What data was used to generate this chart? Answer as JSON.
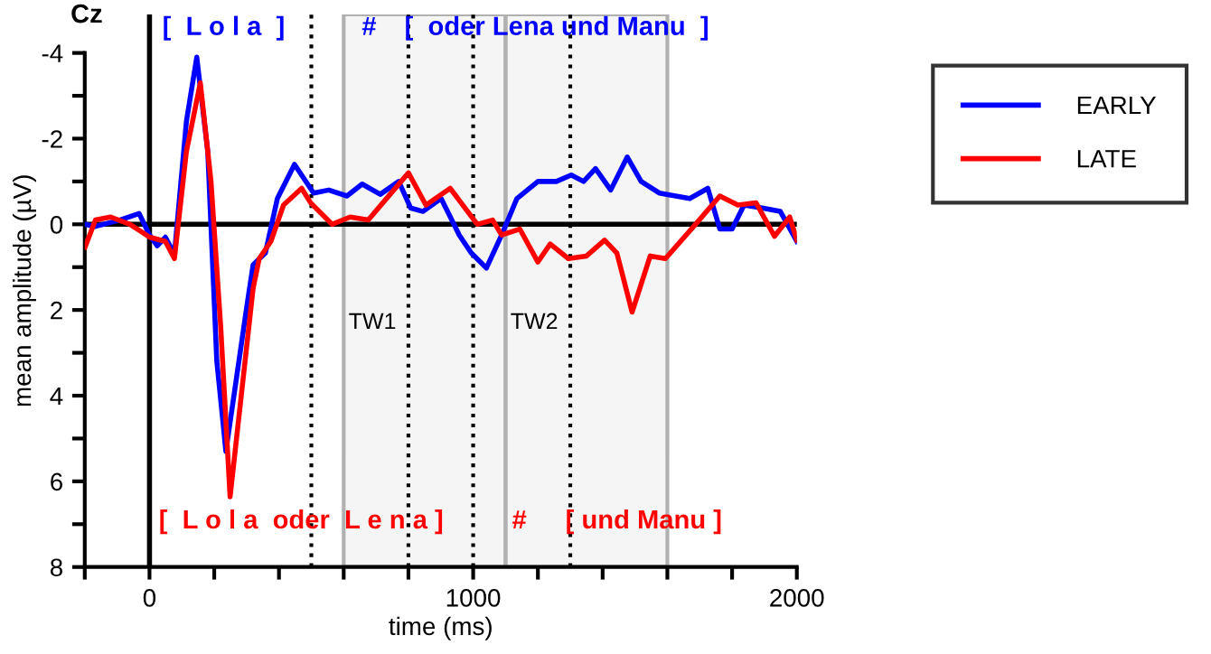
{
  "chart_data": {
    "type": "line",
    "title": "Cz",
    "xlabel": "time (ms)",
    "ylabel": "mean amplitude (µV)",
    "xlim": [
      -200,
      2000
    ],
    "ylim": [
      8,
      -4.9
    ],
    "xticks": [
      {
        "value": -200,
        "label": null
      },
      0,
      {
        "value": 200,
        "label": null
      },
      {
        "value": 400,
        "label": null
      },
      {
        "value": 600,
        "label": null
      },
      {
        "value": 800,
        "label": null
      },
      1000,
      {
        "value": 1200,
        "label": null
      },
      {
        "value": 1400,
        "label": null
      },
      {
        "value": 1600,
        "label": null
      },
      {
        "value": 1800,
        "label": null
      },
      2000
    ],
    "yticks": [
      -4,
      {
        "value": -3,
        "label": null
      },
      -2,
      {
        "value": -1,
        "label": null
      },
      0,
      {
        "value": 1,
        "label": null
      },
      2,
      {
        "value": 3,
        "label": null
      },
      4,
      {
        "value": 5,
        "label": null
      },
      6,
      {
        "value": 7,
        "label": null
      },
      8
    ],
    "legend": "top right",
    "grid": false,
    "marker": "none",
    "line_style": "solid",
    "series": [
      {
        "name": "EARLY",
        "color": "#0000ff",
        "x": [
          -199,
          -167,
          -92,
          -32,
          0,
          24,
          49,
          77,
          114,
          146,
          180,
          208,
          236,
          301,
          320,
          358,
          395,
          448,
          507,
          554,
          610,
          657,
          713,
          770,
          807,
          845,
          901,
          957,
          994,
          1041,
          1088,
          1135,
          1200,
          1257,
          1303,
          1341,
          1378,
          1425,
          1476,
          1519,
          1575,
          1669,
          1725,
          1762,
          1800,
          1837,
          1893,
          1949,
          2000
        ],
        "values": [
          0,
          0.05,
          -0.1,
          -0.25,
          0.25,
          0.5,
          0.3,
          0.7,
          -2.4,
          -3.9,
          -1.7,
          3.2,
          5.3,
          1.9,
          0.95,
          0.67,
          -0.6,
          -1.4,
          -0.73,
          -0.8,
          -0.66,
          -0.94,
          -0.7,
          -1.0,
          -0.38,
          -0.3,
          -0.6,
          0.25,
          0.67,
          1.02,
          0.25,
          -0.6,
          -1.0,
          -1.0,
          -1.15,
          -1.0,
          -1.3,
          -0.8,
          -1.57,
          -1.0,
          -0.73,
          -0.6,
          -0.84,
          0.11,
          0.11,
          -0.45,
          -0.38,
          -0.3,
          0.4
        ]
      },
      {
        "name": "LATE",
        "color": "#ff0000",
        "x": [
          -199,
          -167,
          -120,
          -60,
          0,
          49,
          77,
          114,
          157,
          190,
          220,
          249,
          320,
          339,
          375,
          414,
          470,
          498,
          564,
          620,
          676,
          732,
          800,
          854,
          929,
          1013,
          1060,
          1088,
          1144,
          1200,
          1238,
          1294,
          1350,
          1406,
          1444,
          1491,
          1547,
          1594,
          1687,
          1762,
          1818,
          1874,
          1931,
          1978,
          2000
        ],
        "values": [
          0.53,
          -0.1,
          -0.17,
          0,
          0.3,
          0.4,
          0.8,
          -1.7,
          -3.3,
          -1.0,
          2.4,
          6.36,
          1.5,
          0.8,
          0.4,
          -0.45,
          -0.84,
          -0.5,
          0,
          -0.17,
          -0.1,
          -0.6,
          -1.2,
          -0.45,
          -0.84,
          0,
          -0.1,
          0.25,
          0.11,
          0.88,
          0.46,
          0.8,
          0.74,
          0.37,
          0.67,
          2.05,
          0.74,
          0.8,
          0,
          -0.66,
          -0.45,
          -0.5,
          0.28,
          -0.17,
          0.37
        ]
      }
    ],
    "ref_lines": [
      {
        "axis": "y",
        "value": 0,
        "color": "#000000",
        "line_style": "solid"
      },
      {
        "axis": "x",
        "value": 0,
        "color": "#000000",
        "line_style": "solid"
      },
      {
        "axis": "x",
        "value": 500,
        "color": "#000000",
        "line_style": "dotted"
      },
      {
        "axis": "x",
        "value": 800,
        "color": "#000000",
        "line_style": "dotted"
      },
      {
        "axis": "x",
        "value": 1000,
        "color": "#000000",
        "line_style": "dotted"
      },
      {
        "axis": "x",
        "value": 1300,
        "color": "#000000",
        "line_style": "dotted"
      }
    ],
    "bands": [
      {
        "axis": "x",
        "from": 600,
        "to": 1100,
        "label": "TW1",
        "color": "#b0b0b0"
      },
      {
        "axis": "x",
        "from": 1100,
        "to": 1600,
        "label": "TW2",
        "color": "#b0b0b0"
      }
    ],
    "annotations": [
      "[  L o l a  ]",
      "#",
      "[  oder Lena und Manu  ]",
      "[  L o l a  oder  L e n a ]",
      "#",
      "[ und Manu ]"
    ]
  }
}
